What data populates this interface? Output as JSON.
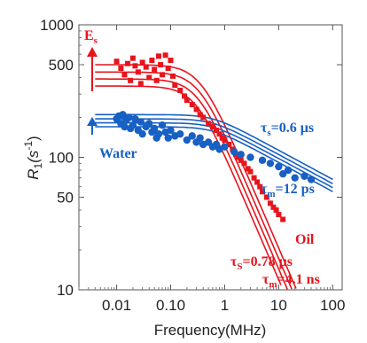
{
  "chart_data": {
    "type": "scatter",
    "xlabel": "Frequency(MHz)",
    "ylabel_main": "R",
    "ylabel_sub": "1",
    "ylabel_unit": "(s",
    "ylabel_exp": "-1",
    "ylabel_close": ")",
    "x_scale": "log",
    "y_scale": "log",
    "xlim": [
      0.002,
      150
    ],
    "ylim": [
      10,
      1000
    ],
    "x_ticks": [
      0.01,
      0.1,
      1,
      10,
      100
    ],
    "x_tick_labels": [
      "0.01",
      "0.10",
      "1",
      "10",
      "100"
    ],
    "y_ticks": [
      10,
      50,
      100,
      500,
      1000
    ],
    "y_tick_labels": [
      "10",
      "50",
      "100",
      "500",
      "1000"
    ],
    "grid": false,
    "colors": {
      "oil": "#e8141c",
      "water": "#1760c4"
    },
    "annotations": {
      "es_main": "E",
      "es_sub": "s",
      "water_label": "Water",
      "oil_label": "Oil",
      "water_tau_s": "τ",
      "water_tau_s_sub": "s",
      "water_tau_s_val": "=0.6 μs",
      "water_tau_m": "τ",
      "water_tau_m_sub": "m",
      "water_tau_m_val": "=12 ps",
      "oil_tau_s": "τ",
      "oil_tau_s_sub": "S",
      "oil_tau_s_val": "=0.78 μs",
      "oil_tau_m": "τ",
      "oil_tau_m_sub": "m",
      "oil_tau_m_val": "=4.1 ns"
    },
    "series": [
      {
        "marker": "square",
        "color": "#e8141c",
        "points": [
          [
            0.01,
            530
          ],
          [
            0.012,
            470
          ],
          [
            0.014,
            420
          ],
          [
            0.016,
            510
          ],
          [
            0.018,
            380
          ],
          [
            0.02,
            560
          ],
          [
            0.022,
            490
          ],
          [
            0.025,
            440
          ],
          [
            0.028,
            360
          ],
          [
            0.03,
            520
          ],
          [
            0.035,
            480
          ],
          [
            0.04,
            400
          ],
          [
            0.045,
            540
          ],
          [
            0.05,
            460
          ],
          [
            0.055,
            380
          ],
          [
            0.06,
            580
          ],
          [
            0.065,
            500
          ],
          [
            0.07,
            420
          ],
          [
            0.08,
            590
          ],
          [
            0.09,
            470
          ],
          [
            0.1,
            540
          ],
          [
            0.11,
            410
          ],
          [
            0.12,
            350
          ],
          [
            0.15,
            320
          ],
          [
            0.18,
            290
          ],
          [
            0.2,
            270
          ],
          [
            0.25,
            250
          ],
          [
            0.3,
            230
          ],
          [
            0.35,
            210
          ],
          [
            0.4,
            200
          ],
          [
            0.5,
            180
          ],
          [
            0.6,
            170
          ],
          [
            0.7,
            160
          ],
          [
            0.8,
            150
          ],
          [
            0.9,
            140
          ],
          [
            1.0,
            135
          ],
          [
            1.2,
            125
          ],
          [
            1.4,
            115
          ],
          [
            1.6,
            105
          ],
          [
            1.8,
            100
          ],
          [
            2.0,
            95
          ],
          [
            2.3,
            90
          ],
          [
            2.7,
            82
          ],
          [
            3.0,
            78
          ],
          [
            3.5,
            70
          ],
          [
            4.0,
            65
          ],
          [
            4.5,
            60
          ],
          [
            5.0,
            55
          ],
          [
            6.0,
            50
          ],
          [
            7.0,
            45
          ],
          [
            8.0,
            42
          ],
          [
            9.0,
            40
          ],
          [
            10.0,
            37
          ],
          [
            12.0,
            34
          ]
        ]
      },
      {
        "marker": "circle",
        "color": "#1760c4",
        "points": [
          [
            0.01,
            195
          ],
          [
            0.011,
            205
          ],
          [
            0.012,
            180
          ],
          [
            0.013,
            210
          ],
          [
            0.014,
            170
          ],
          [
            0.015,
            190
          ],
          [
            0.017,
            200
          ],
          [
            0.018,
            165
          ],
          [
            0.02,
            175
          ],
          [
            0.022,
            195
          ],
          [
            0.025,
            160
          ],
          [
            0.028,
            185
          ],
          [
            0.03,
            150
          ],
          [
            0.035,
            170
          ],
          [
            0.04,
            180
          ],
          [
            0.045,
            155
          ],
          [
            0.05,
            165
          ],
          [
            0.055,
            140
          ],
          [
            0.06,
            150
          ],
          [
            0.07,
            175
          ],
          [
            0.08,
            155
          ],
          [
            0.09,
            140
          ],
          [
            0.1,
            160
          ],
          [
            0.12,
            145
          ],
          [
            0.15,
            150
          ],
          [
            0.2,
            135
          ],
          [
            0.25,
            145
          ],
          [
            0.3,
            130
          ],
          [
            0.35,
            140
          ],
          [
            0.4,
            125
          ],
          [
            0.5,
            130
          ],
          [
            0.6,
            120
          ],
          [
            0.7,
            125
          ],
          [
            0.8,
            115
          ],
          [
            1.0,
            120
          ],
          [
            1.5,
            110
          ],
          [
            2.0,
            105
          ],
          [
            3.0,
            100
          ],
          [
            5.0,
            95
          ],
          [
            7.0,
            90
          ],
          [
            10.0,
            85
          ],
          [
            12.0,
            75
          ],
          [
            15.0,
            80
          ],
          [
            20.0,
            70
          ],
          [
            30.0,
            72
          ],
          [
            40.0,
            68
          ]
        ]
      }
    ],
    "fits": [
      {
        "color": "#e8141c",
        "plateau": 500,
        "freq_corner": 0.35,
        "slope": -0.95
      },
      {
        "color": "#e8141c",
        "plateau": 440,
        "freq_corner": 0.33,
        "slope": -0.95
      },
      {
        "color": "#e8141c",
        "plateau": 390,
        "freq_corner": 0.31,
        "slope": -0.95
      },
      {
        "color": "#e8141c",
        "plateau": 345,
        "freq_corner": 0.29,
        "slope": -0.95
      },
      {
        "color": "#1760c4",
        "plateau": 210,
        "freq_corner": 0.6,
        "slope": -0.22
      },
      {
        "color": "#1760c4",
        "plateau": 195,
        "freq_corner": 0.6,
        "slope": -0.22
      },
      {
        "color": "#1760c4",
        "plateau": 182,
        "freq_corner": 0.6,
        "slope": -0.22
      },
      {
        "color": "#1760c4",
        "plateau": 170,
        "freq_corner": 0.6,
        "slope": -0.22
      }
    ]
  }
}
